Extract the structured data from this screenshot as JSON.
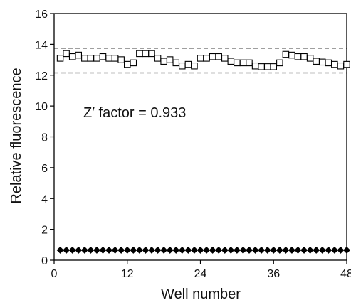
{
  "chart_data": {
    "type": "scatter",
    "xlabel": "Well number",
    "ylabel": "Relative fluorescence",
    "xlim": [
      0,
      48
    ],
    "ylim": [
      0,
      16
    ],
    "xticks": [
      0,
      12,
      24,
      36,
      48
    ],
    "yticks": [
      0,
      2,
      4,
      6,
      8,
      10,
      12,
      14,
      16
    ],
    "grid": false,
    "annotation": "Z′ factor = 0.933",
    "reference_lines": [
      {
        "y": 13.75,
        "style": "dashed"
      },
      {
        "y": 12.15,
        "style": "dashed"
      }
    ],
    "series": [
      {
        "marker": "open-square",
        "color": "#000000",
        "x": [
          1,
          2,
          3,
          4,
          5,
          6,
          7,
          8,
          9,
          10,
          11,
          12,
          13,
          14,
          15,
          16,
          17,
          18,
          19,
          20,
          21,
          22,
          23,
          24,
          25,
          26,
          27,
          28,
          29,
          30,
          31,
          32,
          33,
          34,
          35,
          36,
          37,
          38,
          39,
          40,
          41,
          42,
          43,
          44,
          45,
          46,
          47,
          48
        ],
        "values": [
          13.1,
          13.4,
          13.2,
          13.3,
          13.1,
          13.1,
          13.1,
          13.2,
          13.1,
          13.1,
          13.0,
          12.7,
          12.8,
          13.4,
          13.4,
          13.4,
          13.1,
          12.9,
          13.0,
          12.8,
          12.6,
          12.7,
          12.6,
          13.1,
          13.1,
          13.2,
          13.2,
          13.1,
          12.9,
          12.8,
          12.8,
          12.8,
          12.6,
          12.55,
          12.55,
          12.55,
          12.8,
          13.35,
          13.3,
          13.2,
          13.2,
          13.1,
          12.9,
          12.85,
          12.8,
          12.7,
          12.6,
          12.7
        ]
      },
      {
        "marker": "filled-diamond",
        "color": "#000000",
        "x": [
          1,
          2,
          3,
          4,
          5,
          6,
          7,
          8,
          9,
          10,
          11,
          12,
          13,
          14,
          15,
          16,
          17,
          18,
          19,
          20,
          21,
          22,
          23,
          24,
          25,
          26,
          27,
          28,
          29,
          30,
          31,
          32,
          33,
          34,
          35,
          36,
          37,
          38,
          39,
          40,
          41,
          42,
          43,
          44,
          45,
          46,
          47,
          48
        ],
        "values": [
          0.65,
          0.65,
          0.65,
          0.65,
          0.65,
          0.65,
          0.65,
          0.65,
          0.65,
          0.65,
          0.65,
          0.65,
          0.65,
          0.65,
          0.65,
          0.65,
          0.65,
          0.65,
          0.65,
          0.65,
          0.65,
          0.65,
          0.65,
          0.65,
          0.65,
          0.65,
          0.65,
          0.65,
          0.65,
          0.65,
          0.65,
          0.65,
          0.65,
          0.65,
          0.65,
          0.65,
          0.65,
          0.65,
          0.65,
          0.65,
          0.65,
          0.65,
          0.65,
          0.65,
          0.65,
          0.65,
          0.65,
          0.65
        ]
      }
    ]
  }
}
